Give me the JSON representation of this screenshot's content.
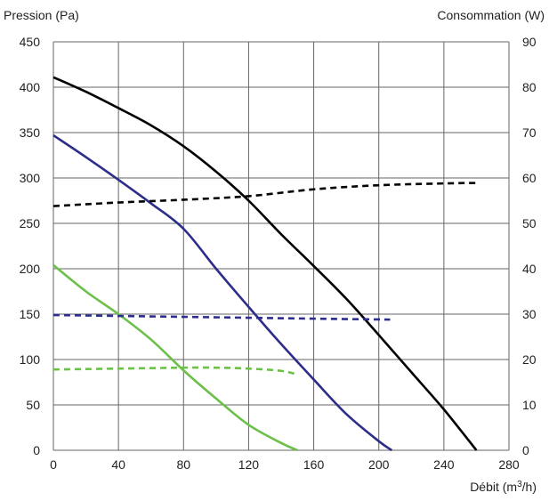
{
  "chart_data": {
    "type": "line",
    "xlabel": "Débit (m",
    "xlabel_sup": "3",
    "xlabel_tail": "/h)",
    "ylabel_left": "Pression (Pa)",
    "ylabel_right": "Consommation (W)",
    "xlim": [
      0,
      280
    ],
    "ylim_left": [
      0,
      450
    ],
    "ylim_right": [
      0,
      90
    ],
    "grid": true,
    "x_ticks": [
      "0",
      "40",
      "80",
      "120",
      "160",
      "200",
      "240",
      "280"
    ],
    "y_ticks_left": [
      "0",
      "50",
      "100",
      "150",
      "200",
      "250",
      "300",
      "350",
      "400",
      "450"
    ],
    "y_ticks_right": [
      "0",
      "10",
      "20",
      "30",
      "40",
      "50",
      "60",
      "70",
      "80",
      "90"
    ],
    "series": [
      {
        "axis": "left",
        "style": "solid",
        "color": "#000000",
        "x": [
          0,
          20,
          40,
          60,
          80,
          100,
          120,
          140,
          160,
          180,
          200,
          220,
          240,
          260
        ],
        "y": [
          411,
          395,
          377,
          358,
          335,
          307,
          275,
          238,
          203,
          167,
          127,
          86,
          45,
          0
        ]
      },
      {
        "axis": "left",
        "style": "solid",
        "color": "#2d2d8a",
        "x": [
          0,
          20,
          40,
          60,
          80,
          100,
          120,
          140,
          160,
          180,
          200,
          208
        ],
        "y": [
          347,
          323,
          298,
          272,
          244,
          200,
          158,
          117,
          78,
          40,
          10,
          0
        ]
      },
      {
        "axis": "left",
        "style": "solid",
        "color": "#6cc04a",
        "x": [
          0,
          20,
          40,
          60,
          80,
          100,
          120,
          140,
          150
        ],
        "y": [
          204,
          175,
          150,
          122,
          88,
          57,
          28,
          8,
          0
        ]
      },
      {
        "axis": "right",
        "style": "dashed",
        "color": "#000000",
        "x": [
          0,
          40,
          80,
          120,
          160,
          200,
          240,
          260
        ],
        "y": [
          53.8,
          54.6,
          55.2,
          56.0,
          57.5,
          58.4,
          58.8,
          58.9
        ]
      },
      {
        "axis": "right",
        "style": "dashed",
        "color": "#2d2d8a",
        "x": [
          0,
          40,
          80,
          120,
          160,
          207
        ],
        "y": [
          29.8,
          29.6,
          29.4,
          29.2,
          29.0,
          28.8
        ]
      },
      {
        "axis": "right",
        "style": "dashed",
        "color": "#6cc04a",
        "x": [
          0,
          40,
          80,
          100,
          120,
          140,
          150
        ],
        "y": [
          17.8,
          18.0,
          18.2,
          18.2,
          18.0,
          17.5,
          16.7
        ]
      }
    ]
  }
}
